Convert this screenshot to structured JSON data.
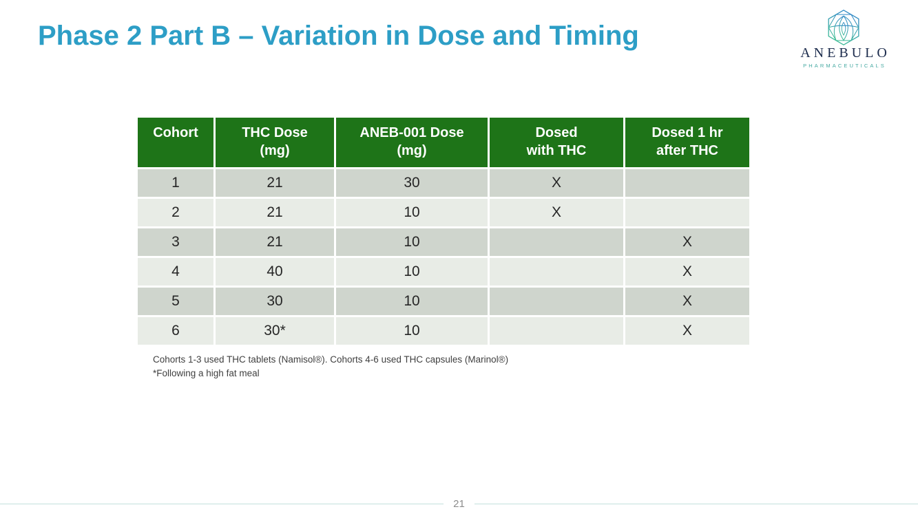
{
  "slide": {
    "title": "Phase 2 Part B – Variation in Dose and Timing",
    "page_number": "21"
  },
  "logo": {
    "company": "ANEBULO",
    "subtitle": "PHARMACEUTICALS"
  },
  "table": {
    "headers": [
      [
        "Cohort"
      ],
      [
        "THC Dose",
        "(mg)"
      ],
      [
        "ANEB-001 Dose",
        "(mg)"
      ],
      [
        "Dosed",
        "with THC"
      ],
      [
        "Dosed 1 hr",
        "after THC"
      ]
    ],
    "rows": [
      [
        "1",
        "21",
        "30",
        "X",
        ""
      ],
      [
        "2",
        "21",
        "10",
        "X",
        ""
      ],
      [
        "3",
        "21",
        "10",
        "",
        "X"
      ],
      [
        "4",
        "40",
        "10",
        "",
        "X"
      ],
      [
        "5",
        "30",
        "10",
        "",
        "X"
      ],
      [
        "6",
        "30*",
        "10",
        "",
        "X"
      ]
    ]
  },
  "footnotes": [
    "Cohorts 1-3 used THC tablets (Namisol®). Cohorts 4-6 used THC capsules (Marinol®)",
    "*Following a high fat meal"
  ],
  "colors": {
    "title": "#2D9EC6",
    "header_green": "#1E7418",
    "row_dark": "#CFD5CD",
    "row_light": "#E8ECE6",
    "footer_line": "#C3E0DC",
    "page_number": "#8C8C8C"
  }
}
